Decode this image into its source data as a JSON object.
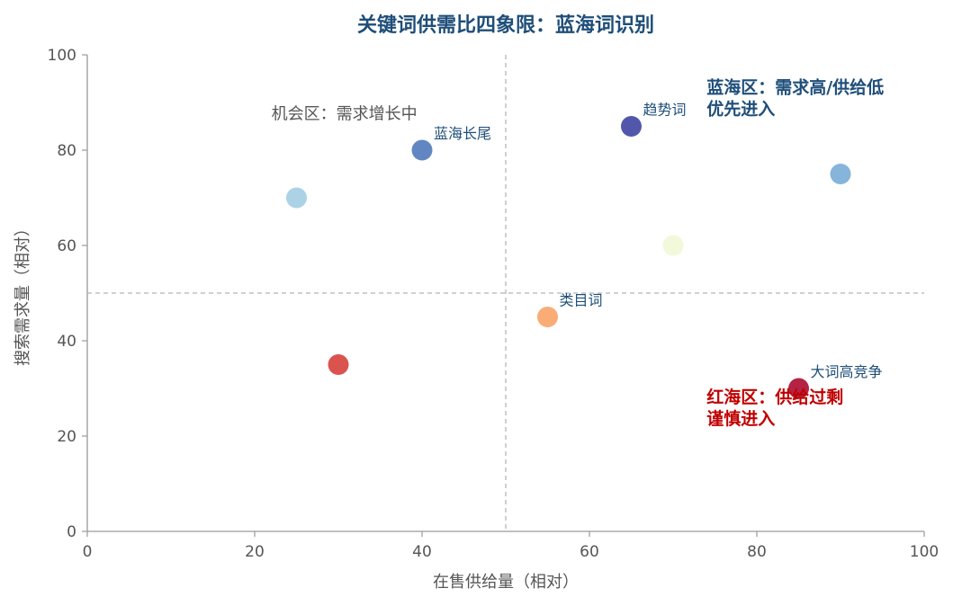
{
  "chart_data": {
    "type": "scatter",
    "title": "关键词供需比四象限：蓝海词识别",
    "xlabel": "在售供给量（相对）",
    "ylabel": "搜索需求量（相对）",
    "xlim": [
      0,
      100
    ],
    "ylim": [
      0,
      100
    ],
    "xticks": [
      0,
      20,
      40,
      60,
      80,
      100
    ],
    "yticks": [
      0,
      20,
      40,
      60,
      80,
      100
    ],
    "divider_x": 50,
    "divider_y": 50,
    "grid": false,
    "points": [
      {
        "x": 25,
        "y": 70,
        "label": "",
        "color": "#a6d0e4"
      },
      {
        "x": 40,
        "y": 80,
        "label": "蓝海长尾",
        "color": "#5a7fbf"
      },
      {
        "x": 65,
        "y": 85,
        "label": "趋势词",
        "color": "#4a4ea6"
      },
      {
        "x": 90,
        "y": 75,
        "label": "",
        "color": "#7fb0d9"
      },
      {
        "x": 70,
        "y": 60,
        "label": "",
        "color": "#f1f8d8"
      },
      {
        "x": 55,
        "y": 45,
        "label": "类目词",
        "color": "#f9a86f"
      },
      {
        "x": 30,
        "y": 35,
        "label": "",
        "color": "#d94a45"
      },
      {
        "x": 85,
        "y": 30,
        "label": "大词高竞争",
        "color": "#b0173a"
      }
    ],
    "annotations": [
      {
        "id": "opportunity",
        "lines": [
          "机会区：需求增长中"
        ],
        "x": 22,
        "y": 86.5,
        "style": "dark"
      },
      {
        "id": "blue-ocean",
        "lines": [
          "蓝海区：需求高/供给低",
          "优先进入"
        ],
        "x": 74,
        "y": 92,
        "style": "blue"
      },
      {
        "id": "red-ocean",
        "lines": [
          "红海区：供给过剩",
          "谨慎进入"
        ],
        "x": 74,
        "y": 27,
        "style": "red"
      }
    ]
  }
}
